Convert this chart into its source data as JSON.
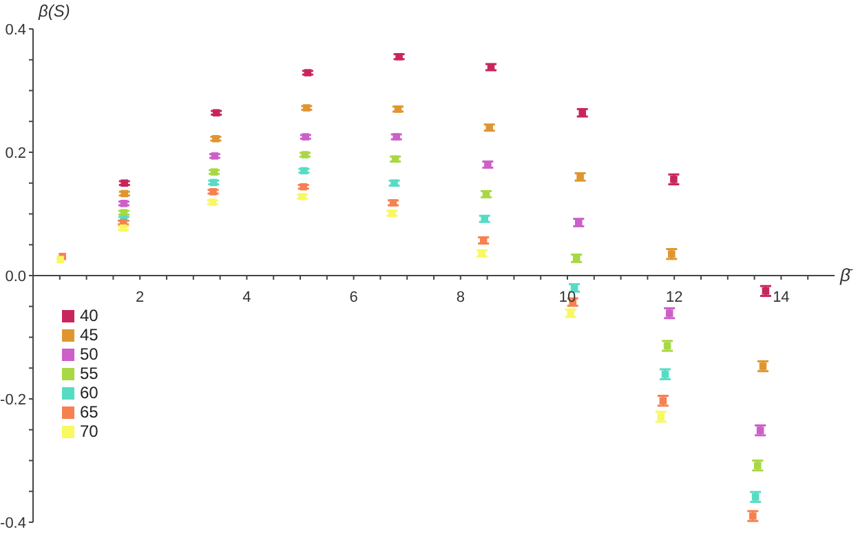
{
  "chart_data": {
    "type": "scatter",
    "xlabel": "β̄",
    "ylabel": "β(S)",
    "xlim": [
      0,
      15
    ],
    "ylim": [
      -0.4,
      0.4
    ],
    "xticks": [
      {
        "value": 0.5,
        "label": null
      },
      {
        "value": 1,
        "label": null
      },
      {
        "value": 1.5,
        "label": null
      },
      2,
      {
        "value": 2.5,
        "label": null
      },
      {
        "value": 3,
        "label": null
      },
      {
        "value": 3.5,
        "label": null
      },
      4,
      {
        "value": 4.5,
        "label": null
      },
      {
        "value": 5,
        "label": null
      },
      {
        "value": 5.5,
        "label": null
      },
      6,
      {
        "value": 6.5,
        "label": null
      },
      {
        "value": 7,
        "label": null
      },
      {
        "value": 7.5,
        "label": null
      },
      8,
      {
        "value": 8.5,
        "label": null
      },
      {
        "value": 9,
        "label": null
      },
      {
        "value": 9.5,
        "label": null
      },
      10,
      {
        "value": 10.5,
        "label": null
      },
      {
        "value": 11,
        "label": null
      },
      {
        "value": 11.5,
        "label": null
      },
      12,
      {
        "value": 12.5,
        "label": null
      },
      {
        "value": 13,
        "label": null
      },
      {
        "value": 13.5,
        "label": null
      },
      14,
      {
        "value": 14.5,
        "label": null
      }
    ],
    "yticks": [
      {
        "value": -0.4,
        "label": "-0.4"
      },
      {
        "value": -0.35,
        "label": null
      },
      {
        "value": -0.3,
        "label": null
      },
      {
        "value": -0.25,
        "label": null
      },
      {
        "value": -0.2,
        "label": "-0.2"
      },
      {
        "value": -0.15,
        "label": null
      },
      {
        "value": -0.1,
        "label": null
      },
      {
        "value": -0.05,
        "label": null
      },
      {
        "value": 0,
        "label": "0.0"
      },
      {
        "value": 0.05,
        "label": null
      },
      {
        "value": 0.1,
        "label": null
      },
      {
        "value": 0.15,
        "label": null
      },
      {
        "value": 0.2,
        "label": "0.2"
      },
      {
        "value": 0.25,
        "label": null
      },
      {
        "value": 0.3,
        "label": null
      },
      {
        "value": 0.35,
        "label": null
      },
      {
        "value": 0.4,
        "label": "0.4"
      }
    ],
    "marker": "square",
    "legend": "bottom left",
    "series": [
      {
        "name": "40",
        "color": "#c8265a",
        "x": [
          1.71,
          3.43,
          5.14,
          6.85,
          8.57,
          10.28,
          11.99,
          13.71
        ],
        "values": [
          0.15,
          0.264,
          0.329,
          0.355,
          0.338,
          0.264,
          0.156,
          -0.025
        ],
        "errors": [
          0.003,
          0.003,
          0.003,
          0.004,
          0.005,
          0.006,
          0.008,
          0.008
        ]
      },
      {
        "name": "45",
        "color": "#e0962f",
        "x": [
          1.71,
          3.42,
          5.12,
          6.83,
          8.54,
          10.24,
          11.95,
          13.66
        ],
        "values": [
          0.133,
          0.222,
          0.272,
          0.27,
          0.24,
          0.16,
          0.035,
          -0.147
        ],
        "errors": [
          0.003,
          0.003,
          0.003,
          0.004,
          0.005,
          0.006,
          0.008,
          0.008
        ]
      },
      {
        "name": "50",
        "color": "#cc5fc8",
        "x": [
          1.7,
          3.4,
          5.1,
          6.8,
          8.51,
          10.21,
          11.91,
          13.61
        ],
        "values": [
          0.117,
          0.194,
          0.225,
          0.225,
          0.18,
          0.086,
          -0.061,
          -0.251
        ],
        "errors": [
          0.003,
          0.003,
          0.003,
          0.004,
          0.005,
          0.006,
          0.008,
          0.008
        ]
      },
      {
        "name": "55",
        "color": "#a8d843",
        "x": [
          1.7,
          3.39,
          5.09,
          6.78,
          8.48,
          10.17,
          11.87,
          13.56
        ],
        "values": [
          0.102,
          0.168,
          0.196,
          0.189,
          0.132,
          0.028,
          -0.114,
          -0.308
        ],
        "errors": [
          0.003,
          0.003,
          0.003,
          0.004,
          0.005,
          0.006,
          0.008,
          0.008
        ]
      },
      {
        "name": "60",
        "color": "#55dcc4",
        "x": [
          1.7,
          3.38,
          5.07,
          6.76,
          8.45,
          10.13,
          11.83,
          13.52
        ],
        "values": [
          0.092,
          0.151,
          0.17,
          0.15,
          0.092,
          -0.02,
          -0.16,
          -0.359
        ],
        "errors": [
          0.003,
          0.003,
          0.003,
          0.004,
          0.005,
          0.006,
          0.008,
          0.008
        ]
      },
      {
        "name": "65",
        "color": "#f78050",
        "x": [
          0.55,
          1.69,
          3.37,
          5.06,
          6.74,
          8.43,
          10.1,
          11.79,
          13.47
        ],
        "values": [
          0.031,
          0.086,
          0.136,
          0.144,
          0.118,
          0.057,
          -0.043,
          -0.203,
          -0.39
        ],
        "errors": [
          null,
          0.003,
          0.003,
          0.003,
          0.004,
          0.005,
          0.006,
          0.008,
          0.008
        ]
      },
      {
        "name": "70",
        "color": "#f8f860",
        "x": [
          0.51,
          1.69,
          3.36,
          5.04,
          6.72,
          8.4,
          10.06,
          11.75
        ],
        "values": [
          0.026,
          0.077,
          0.119,
          0.128,
          0.101,
          0.036,
          -0.061,
          -0.229
        ],
        "errors": [
          null,
          0.003,
          0.003,
          0.003,
          0.004,
          0.005,
          0.006,
          0.008
        ]
      }
    ]
  }
}
